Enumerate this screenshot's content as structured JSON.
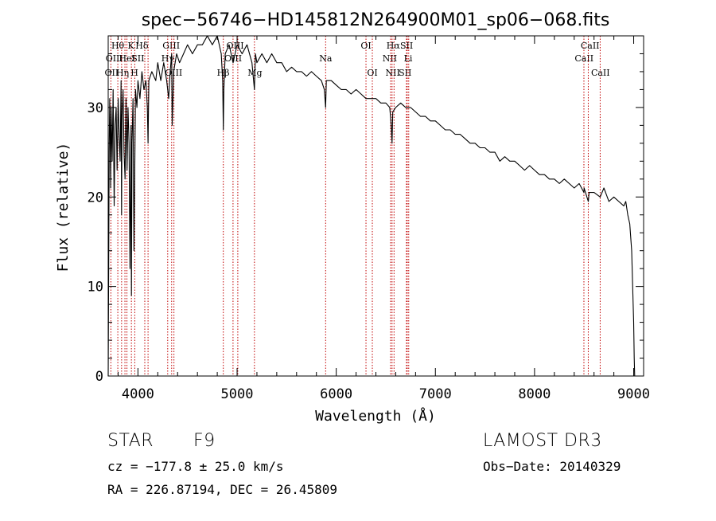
{
  "chart_data": {
    "type": "line",
    "title": "spec−56746−HD145812N264900M01_sp06−068.fits",
    "xlabel": "Wavelength (Å)",
    "ylabel": "Flux (relative)",
    "xlim": [
      3700,
      9100
    ],
    "ylim": [
      0,
      38
    ],
    "x_ticks": [
      4000,
      5000,
      6000,
      7000,
      8000,
      9000
    ],
    "y_ticks": [
      0,
      10,
      20,
      30
    ],
    "x_tick_labels": [
      "4000",
      "5000",
      "6000",
      "7000",
      "8000",
      "9000"
    ],
    "y_tick_labels": [
      "0",
      "10",
      "20",
      "30"
    ],
    "series": [
      {
        "name": "flux",
        "color": "#000000",
        "x": [
          3700,
          3705,
          3710,
          3715,
          3720,
          3725,
          3730,
          3740,
          3750,
          3760,
          3770,
          3780,
          3790,
          3800,
          3810,
          3820,
          3830,
          3835,
          3840,
          3850,
          3860,
          3870,
          3880,
          3890,
          3900,
          3910,
          3920,
          3930,
          3934,
          3940,
          3950,
          3960,
          3968,
          3975,
          3990,
          4000,
          4020,
          4040,
          4060,
          4080,
          4095,
          4102,
          4110,
          4140,
          4180,
          4200,
          4230,
          4260,
          4290,
          4310,
          4325,
          4340,
          4345,
          4360,
          4390,
          4420,
          4460,
          4500,
          4550,
          4600,
          4650,
          4700,
          4750,
          4800,
          4840,
          4855,
          4861,
          4867,
          4880,
          4920,
          4960,
          5000,
          5050,
          5100,
          5150,
          5175,
          5185,
          5200,
          5250,
          5300,
          5350,
          5400,
          5450,
          5500,
          5550,
          5600,
          5650,
          5700,
          5750,
          5800,
          5850,
          5880,
          5893,
          5900,
          5950,
          6000,
          6050,
          6100,
          6150,
          6200,
          6250,
          6300,
          6350,
          6400,
          6450,
          6500,
          6540,
          6555,
          6563,
          6570,
          6600,
          6650,
          6700,
          6750,
          6800,
          6850,
          6900,
          6950,
          7000,
          7050,
          7100,
          7150,
          7200,
          7250,
          7300,
          7350,
          7400,
          7450,
          7500,
          7550,
          7600,
          7650,
          7700,
          7750,
          7800,
          7850,
          7900,
          7950,
          8000,
          8050,
          8100,
          8150,
          8200,
          8250,
          8300,
          8350,
          8400,
          8450,
          8498,
          8500,
          8542,
          8550,
          8600,
          8662,
          8700,
          8750,
          8800,
          8850,
          8900,
          8920,
          8940,
          8960,
          8980,
          9000,
          9005,
          9010
        ],
        "y": [
          0,
          12,
          25,
          31,
          27,
          21,
          30,
          24,
          32,
          19,
          28,
          30,
          23,
          31,
          27,
          24,
          33,
          18,
          29,
          32,
          25,
          22,
          31,
          23,
          30,
          26,
          12,
          28,
          9,
          26,
          31,
          14,
          23,
          32,
          30,
          33,
          31,
          34,
          32,
          33,
          30,
          26,
          33,
          34,
          33,
          35,
          33,
          35,
          33,
          31,
          34,
          36,
          28,
          34,
          36,
          35,
          36,
          37,
          36,
          37,
          37,
          38,
          37,
          38,
          36,
          33,
          27.5,
          32,
          36,
          37,
          35,
          37,
          36,
          37,
          35,
          32,
          36,
          35,
          36,
          35,
          36,
          35,
          35,
          34,
          34.5,
          34,
          34,
          33.5,
          34,
          33.5,
          33,
          32,
          30,
          33,
          33,
          32.5,
          32,
          32,
          31.5,
          32,
          31.5,
          31,
          31,
          31,
          30.5,
          30.5,
          30,
          28,
          26,
          29.5,
          30,
          30.5,
          30,
          30,
          29.5,
          29,
          29,
          28.5,
          28.5,
          28,
          27.5,
          27.5,
          27,
          27,
          26.5,
          26,
          26,
          25.5,
          25.5,
          25,
          25,
          24,
          24.5,
          24,
          24,
          23.5,
          23,
          23.5,
          23,
          22.5,
          22.5,
          22,
          22,
          21.5,
          22,
          21.5,
          21,
          21.5,
          20.5,
          21,
          19.5,
          20.5,
          20.5,
          20,
          21,
          19.5,
          20,
          19.5,
          19,
          19.5,
          18,
          17,
          14,
          6,
          2,
          0
        ]
      }
    ],
    "line_markers": [
      {
        "name": "OII",
        "x": 3727,
        "row": 3,
        "label_x": 3735
      },
      {
        "name": "Hθ",
        "x": 3797,
        "row": 1,
        "label_x": 3797
      },
      {
        "name": "OIII",
        "x": 3869,
        "row": 2,
        "label_x": 3762
      },
      {
        "name": "HeI",
        "x": 3889,
        "row": 2,
        "label_x": 3890
      },
      {
        "name": "Hη",
        "x": 3835,
        "row": 3,
        "label_x": 3845
      },
      {
        "name": "K",
        "x": 3934,
        "row": 1,
        "label_x": 3930
      },
      {
        "name": "SII",
        "x": 4069,
        "row": 2,
        "label_x": 4000
      },
      {
        "name": "H",
        "x": 3968,
        "row": 3,
        "label_x": 3965
      },
      {
        "name": "Hδ",
        "x": 4102,
        "row": 1,
        "label_x": 4040
      },
      {
        "name": "GIII",
        "x": 4300,
        "row": 1,
        "label_x": 4335
      },
      {
        "name": "Hγ",
        "x": 4340,
        "row": 2,
        "label_x": 4300
      },
      {
        "name": "OIII",
        "x": 4363,
        "row": 3,
        "label_x": 4360
      },
      {
        "name": "Hβ",
        "x": 4861,
        "row": 3,
        "label_x": 4860
      },
      {
        "name": "OIII",
        "x": 4959,
        "row": 1,
        "label_x": 4980
      },
      {
        "name": "OIII",
        "x": 5007,
        "row": 2,
        "label_x": 4960
      },
      {
        "name": "Mg",
        "x": 5175,
        "row": 3,
        "label_x": 5180
      },
      {
        "name": "Na",
        "x": 5893,
        "row": 2,
        "label_x": 5893
      },
      {
        "name": "OI",
        "x": 6300,
        "row": 1,
        "label_x": 6300
      },
      {
        "name": "OI",
        "x": 6364,
        "row": 3,
        "label_x": 6364
      },
      {
        "name": "NII",
        "x": 6548,
        "row": 2,
        "label_x": 6540
      },
      {
        "name": "Hα",
        "x": 6563,
        "row": 1,
        "label_x": 6575
      },
      {
        "name": "NII",
        "x": 6583,
        "row": 3,
        "label_x": 6570
      },
      {
        "name": "SII",
        "x": 6716,
        "row": 1,
        "label_x": 6710
      },
      {
        "name": "Li",
        "x": 6708,
        "row": 2,
        "label_x": 6725
      },
      {
        "name": "SII",
        "x": 6731,
        "row": 3,
        "label_x": 6695
      },
      {
        "name": "CaII",
        "x": 8498,
        "row": 2,
        "label_x": 8500
      },
      {
        "name": "CaII",
        "x": 8542,
        "row": 1,
        "label_x": 8560
      },
      {
        "name": "CaII",
        "x": 8662,
        "row": 3,
        "label_x": 8665
      }
    ]
  },
  "info": {
    "object_class": "STAR",
    "subclass": "F9",
    "survey": "LAMOST DR3",
    "velocity": "cz = −177.8 ± 25.0 km/s",
    "obs_date": "Obs−Date: 20140329",
    "coords": "RA = 226.87194, DEC =  26.45809"
  }
}
